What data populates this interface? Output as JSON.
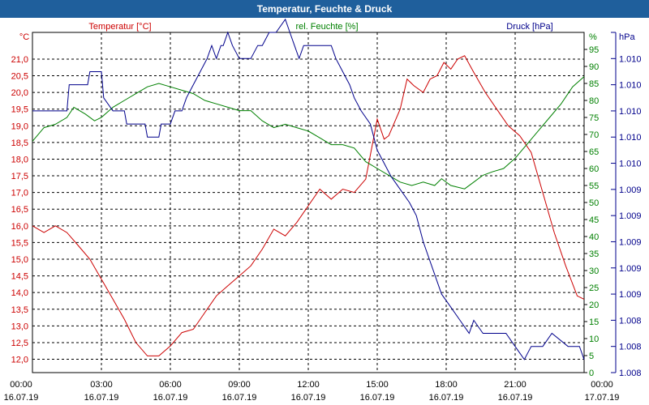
{
  "window": {
    "title": "Temperatur, Feuchte & Druck"
  },
  "chart_data": {
    "type": "line",
    "title": "Temperatur, Feuchte & Druck",
    "legend": [
      "Temperatur [°C]",
      "rel. Feuchte [%]",
      "Druck [hPa]"
    ],
    "colors": {
      "temperature": "#cc0000",
      "humidity": "#008000",
      "pressure": "#00008b",
      "grid": "#000000"
    },
    "x": {
      "unit": "hours",
      "range": [
        0,
        24
      ],
      "ticks": [
        0,
        3,
        6,
        9,
        12,
        15,
        18,
        21,
        24
      ],
      "tick_time": [
        "00:00",
        "03:00",
        "06:00",
        "09:00",
        "12:00",
        "15:00",
        "18:00",
        "21:00",
        "00:00"
      ],
      "tick_date": [
        "16.07.19",
        "16.07.19",
        "16.07.19",
        "16.07.19",
        "16.07.19",
        "16.07.19",
        "16.07.19",
        "16.07.19",
        "17.07.19"
      ]
    },
    "axes": {
      "temperature": {
        "unit_label": "°C",
        "range": [
          11.6,
          21.8
        ],
        "ticks": [
          12.0,
          12.5,
          13.0,
          13.5,
          14.0,
          14.5,
          15.0,
          15.5,
          16.0,
          16.5,
          17.0,
          17.5,
          18.0,
          18.5,
          19.0,
          19.5,
          20.0,
          20.5,
          21.0
        ],
        "tick_labels": [
          "12,0",
          "12,5",
          "13,0",
          "13,5",
          "14,0",
          "14,5",
          "15,0",
          "15,5",
          "16,0",
          "16,5",
          "17,0",
          "17,5",
          "18,0",
          "18,5",
          "19,0",
          "19,5",
          "20,0",
          "20,5",
          "21,0"
        ]
      },
      "humidity": {
        "unit_label": "%",
        "range": [
          0,
          100
        ],
        "ticks": [
          0,
          5,
          10,
          15,
          20,
          25,
          30,
          35,
          40,
          45,
          50,
          55,
          60,
          65,
          70,
          75,
          80,
          85,
          90,
          95
        ],
        "tick_labels": [
          "0",
          "5",
          "10",
          "15",
          "20",
          "25",
          "30",
          "35",
          "40",
          "45",
          "50",
          "55",
          "60",
          "65",
          "70",
          "75",
          "80",
          "85",
          "90",
          "95"
        ]
      },
      "pressure": {
        "unit_label": "hPa",
        "range": [
          0,
          13
        ],
        "ticks": [
          0,
          1,
          2,
          3,
          4,
          5,
          6,
          7,
          8,
          9,
          10,
          11,
          12,
          13
        ],
        "tick_labels": [
          "1.008",
          "1.008",
          "1.008",
          "1.009",
          "1.009",
          "1.009",
          "1.009",
          "1.009",
          "1.010",
          "1.010",
          "1.010",
          "1.010",
          "1.010",
          ""
        ]
      }
    },
    "series": [
      {
        "name": "Temperatur [°C]",
        "axis": "temperature",
        "points": [
          [
            0,
            16.0
          ],
          [
            0.5,
            15.8
          ],
          [
            1.0,
            16.0
          ],
          [
            1.5,
            15.8
          ],
          [
            2.0,
            15.4
          ],
          [
            2.5,
            15.0
          ],
          [
            3.0,
            14.4
          ],
          [
            3.5,
            13.8
          ],
          [
            4.0,
            13.2
          ],
          [
            4.5,
            12.5
          ],
          [
            5.0,
            12.1
          ],
          [
            5.5,
            12.1
          ],
          [
            6.0,
            12.4
          ],
          [
            6.5,
            12.8
          ],
          [
            7.0,
            12.9
          ],
          [
            7.5,
            13.4
          ],
          [
            8.0,
            13.9
          ],
          [
            8.5,
            14.2
          ],
          [
            9.0,
            14.5
          ],
          [
            9.5,
            14.8
          ],
          [
            10.0,
            15.3
          ],
          [
            10.5,
            15.9
          ],
          [
            11.0,
            15.7
          ],
          [
            11.5,
            16.1
          ],
          [
            12.0,
            16.6
          ],
          [
            12.5,
            17.1
          ],
          [
            13.0,
            16.8
          ],
          [
            13.5,
            17.1
          ],
          [
            14.0,
            17.0
          ],
          [
            14.5,
            17.4
          ],
          [
            15.0,
            19.2
          ],
          [
            15.3,
            18.6
          ],
          [
            15.5,
            18.7
          ],
          [
            16.0,
            19.5
          ],
          [
            16.3,
            20.4
          ],
          [
            16.6,
            20.2
          ],
          [
            17.0,
            20.0
          ],
          [
            17.3,
            20.4
          ],
          [
            17.6,
            20.5
          ],
          [
            17.9,
            20.9
          ],
          [
            18.2,
            20.7
          ],
          [
            18.5,
            21.0
          ],
          [
            18.8,
            21.1
          ],
          [
            19.2,
            20.6
          ],
          [
            19.7,
            20.0
          ],
          [
            20.2,
            19.5
          ],
          [
            20.7,
            19.0
          ],
          [
            21.2,
            18.7
          ],
          [
            21.7,
            18.2
          ],
          [
            22.2,
            17.0
          ],
          [
            22.7,
            15.8
          ],
          [
            23.2,
            14.8
          ],
          [
            23.7,
            13.9
          ],
          [
            24.0,
            13.8
          ]
        ]
      },
      {
        "name": "rel. Feuchte [%]",
        "axis": "humidity",
        "points": [
          [
            0,
            68
          ],
          [
            0.5,
            72
          ],
          [
            1.0,
            73
          ],
          [
            1.5,
            75
          ],
          [
            1.8,
            78
          ],
          [
            2.3,
            76
          ],
          [
            2.7,
            74
          ],
          [
            3.0,
            75
          ],
          [
            3.5,
            78
          ],
          [
            4.0,
            80
          ],
          [
            4.5,
            82
          ],
          [
            5.0,
            84
          ],
          [
            5.5,
            85
          ],
          [
            6.0,
            84
          ],
          [
            6.5,
            83
          ],
          [
            7.0,
            82
          ],
          [
            7.5,
            80
          ],
          [
            8.0,
            79
          ],
          [
            8.5,
            78
          ],
          [
            9.0,
            77
          ],
          [
            9.5,
            77
          ],
          [
            10.0,
            74
          ],
          [
            10.5,
            72
          ],
          [
            11.0,
            73
          ],
          [
            11.5,
            72
          ],
          [
            12.0,
            71
          ],
          [
            12.5,
            69
          ],
          [
            13.0,
            67
          ],
          [
            13.5,
            67
          ],
          [
            14.0,
            66
          ],
          [
            14.5,
            62
          ],
          [
            15.0,
            60
          ],
          [
            15.5,
            58
          ],
          [
            16.0,
            56
          ],
          [
            16.5,
            55
          ],
          [
            17.0,
            56
          ],
          [
            17.5,
            55
          ],
          [
            17.8,
            57
          ],
          [
            18.2,
            55
          ],
          [
            18.8,
            54
          ],
          [
            19.2,
            56
          ],
          [
            19.6,
            58
          ],
          [
            20.0,
            59
          ],
          [
            20.5,
            60
          ],
          [
            21.0,
            63
          ],
          [
            21.5,
            67
          ],
          [
            22.0,
            71
          ],
          [
            22.5,
            75
          ],
          [
            23.0,
            79
          ],
          [
            23.5,
            84
          ],
          [
            24.0,
            87
          ]
        ]
      },
      {
        "name": "Druck [hPa]",
        "axis": "pressure",
        "points": [
          [
            0,
            10
          ],
          [
            1.5,
            10
          ],
          [
            1.6,
            11
          ],
          [
            2.4,
            11
          ],
          [
            2.5,
            11.5
          ],
          [
            3.0,
            11.5
          ],
          [
            3.1,
            10.5
          ],
          [
            3.5,
            10
          ],
          [
            4.0,
            10
          ],
          [
            4.1,
            9.5
          ],
          [
            4.9,
            9.5
          ],
          [
            5.0,
            9
          ],
          [
            5.5,
            9
          ],
          [
            5.6,
            9.5
          ],
          [
            6.0,
            9.5
          ],
          [
            6.2,
            10
          ],
          [
            6.5,
            10
          ],
          [
            6.7,
            10.5
          ],
          [
            7.0,
            11
          ],
          [
            7.3,
            11.5
          ],
          [
            7.6,
            12
          ],
          [
            7.8,
            12.5
          ],
          [
            8.0,
            12
          ],
          [
            8.2,
            12.5
          ],
          [
            8.3,
            12.5
          ],
          [
            8.5,
            13
          ],
          [
            8.7,
            12.5
          ],
          [
            9.0,
            12
          ],
          [
            9.5,
            12
          ],
          [
            9.8,
            12.5
          ],
          [
            10.0,
            12.5
          ],
          [
            10.3,
            13
          ],
          [
            10.6,
            13
          ],
          [
            11.0,
            13.5
          ],
          [
            11.2,
            13
          ],
          [
            11.4,
            12.5
          ],
          [
            11.6,
            12
          ],
          [
            11.8,
            12.5
          ],
          [
            12.0,
            12.5
          ],
          [
            13.0,
            12.5
          ],
          [
            13.2,
            12
          ],
          [
            13.5,
            11.5
          ],
          [
            13.8,
            11
          ],
          [
            14.0,
            10.5
          ],
          [
            14.3,
            10
          ],
          [
            14.7,
            9.5
          ],
          [
            15.0,
            8.5
          ],
          [
            15.3,
            8
          ],
          [
            15.6,
            7.5
          ],
          [
            16.0,
            7
          ],
          [
            16.4,
            6.5
          ],
          [
            16.7,
            6
          ],
          [
            17.0,
            5
          ],
          [
            17.4,
            4
          ],
          [
            17.8,
            3
          ],
          [
            18.2,
            2.5
          ],
          [
            18.6,
            2
          ],
          [
            19.0,
            1.5
          ],
          [
            19.2,
            2
          ],
          [
            19.6,
            1.5
          ],
          [
            20.0,
            1.5
          ],
          [
            20.6,
            1.5
          ],
          [
            21.0,
            1
          ],
          [
            21.4,
            0.5
          ],
          [
            21.7,
            1
          ],
          [
            22.2,
            1
          ],
          [
            22.6,
            1.5
          ],
          [
            23.3,
            1
          ],
          [
            23.8,
            1
          ],
          [
            24.0,
            0.5
          ]
        ]
      }
    ]
  }
}
